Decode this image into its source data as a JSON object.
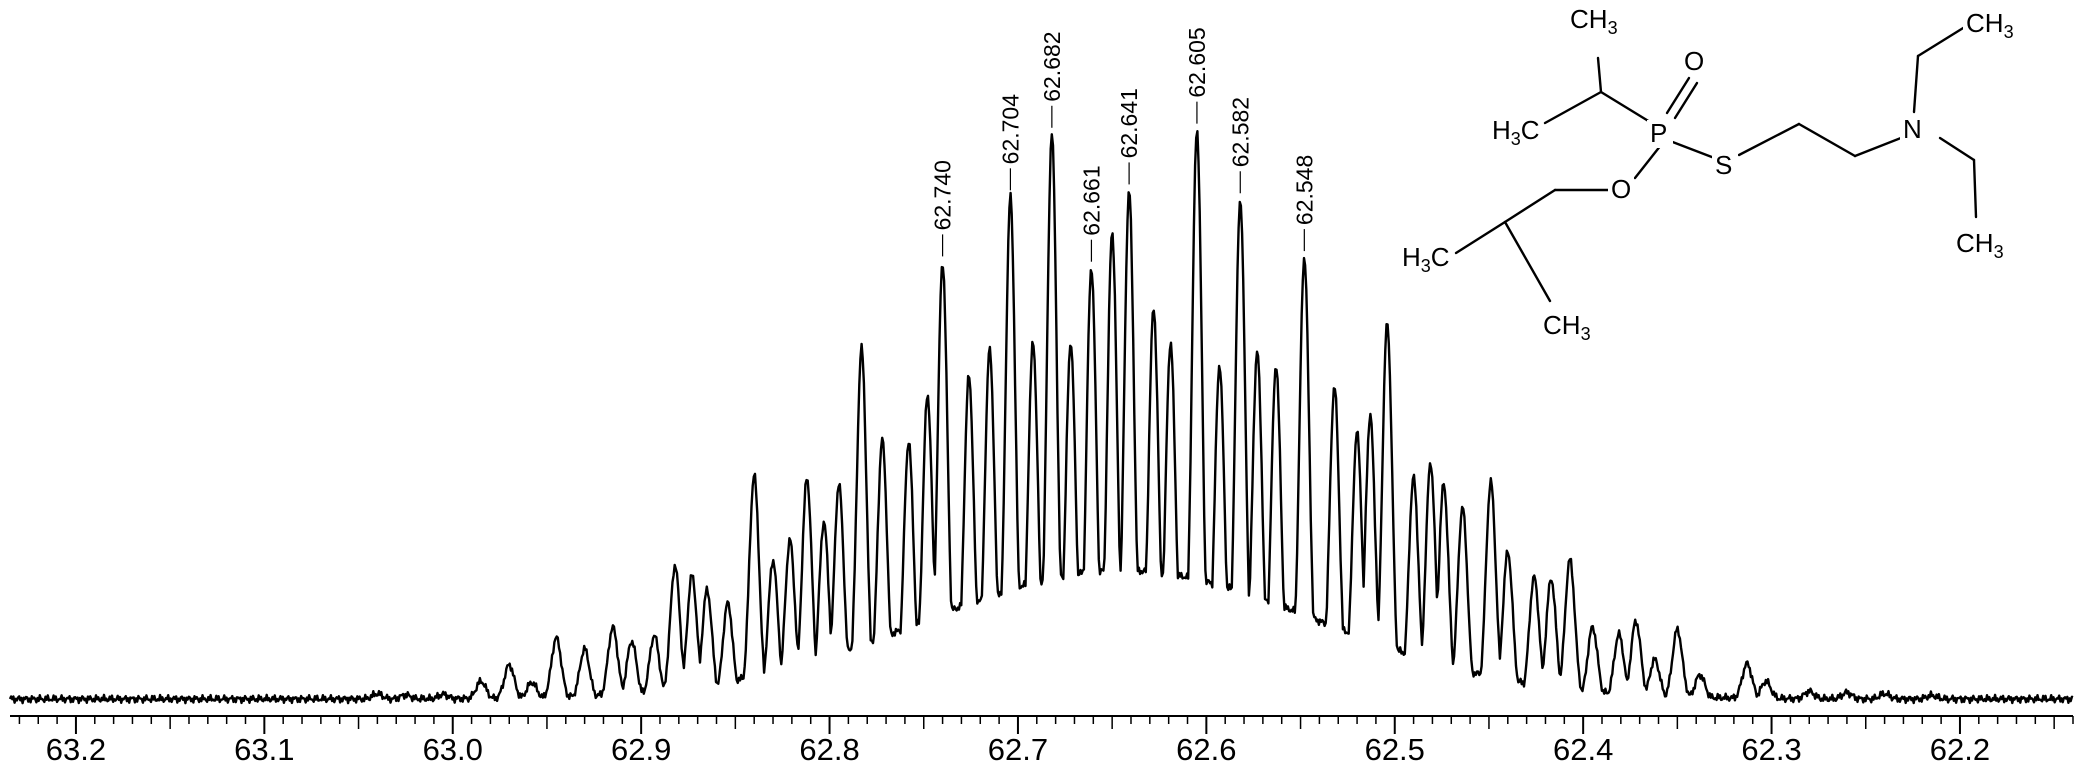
{
  "chart_data": {
    "type": "line",
    "title": "",
    "xlabel": "",
    "ylabel": "",
    "xlim": [
      63.235,
      62.14
    ],
    "x_reversed": true,
    "ylim": [
      0,
      1
    ],
    "grid": false,
    "x_ticks": [
      "63.2",
      "63.1",
      "63.0",
      "62.9",
      "62.8",
      "62.7",
      "62.6",
      "62.5",
      "62.4",
      "62.3",
      "62.2"
    ],
    "x_tick_values": [
      63.2,
      63.1,
      63.0,
      62.9,
      62.8,
      62.7,
      62.6,
      62.5,
      62.4,
      62.3,
      62.2
    ],
    "peaks": [
      {
        "x": 62.74,
        "y": 0.74,
        "label": "62.740"
      },
      {
        "x": 62.704,
        "y": 0.852,
        "label": "62.704"
      },
      {
        "x": 62.682,
        "y": 0.958,
        "label": "62.682"
      },
      {
        "x": 62.661,
        "y": 0.731,
        "label": "62.661"
      },
      {
        "x": 62.641,
        "y": 0.862,
        "label": "62.641"
      },
      {
        "x": 62.605,
        "y": 0.965,
        "label": "62.605"
      },
      {
        "x": 62.582,
        "y": 0.847,
        "label": "62.582"
      },
      {
        "x": 62.548,
        "y": 0.749,
        "label": "62.548"
      }
    ],
    "minor_peaks": [
      [
        63.04,
        0.009
      ],
      [
        63.025,
        0.007
      ],
      [
        63.005,
        0.008
      ],
      [
        62.985,
        0.03
      ],
      [
        62.97,
        0.058
      ],
      [
        62.958,
        0.028
      ],
      [
        62.945,
        0.104
      ],
      [
        62.93,
        0.085
      ],
      [
        62.915,
        0.122
      ],
      [
        62.905,
        0.098
      ],
      [
        62.893,
        0.108
      ],
      [
        62.882,
        0.226
      ],
      [
        62.873,
        0.21
      ],
      [
        62.865,
        0.185
      ],
      [
        62.854,
        0.163
      ],
      [
        62.84,
        0.38
      ],
      [
        62.83,
        0.235
      ],
      [
        62.821,
        0.27
      ],
      [
        62.812,
        0.375
      ],
      [
        62.803,
        0.3
      ],
      [
        62.795,
        0.364
      ],
      [
        62.783,
        0.595
      ],
      [
        62.772,
        0.44
      ],
      [
        62.758,
        0.437
      ],
      [
        62.748,
        0.515
      ],
      [
        62.726,
        0.548
      ],
      [
        62.715,
        0.593
      ],
      [
        62.692,
        0.605
      ],
      [
        62.672,
        0.605
      ],
      [
        62.65,
        0.792
      ],
      [
        62.628,
        0.662
      ],
      [
        62.619,
        0.604
      ],
      [
        62.593,
        0.566
      ],
      [
        62.573,
        0.589
      ],
      [
        62.563,
        0.566
      ],
      [
        62.532,
        0.53
      ],
      [
        62.52,
        0.452
      ],
      [
        62.513,
        0.48
      ],
      [
        62.504,
        0.638
      ],
      [
        62.49,
        0.376
      ],
      [
        62.481,
        0.4
      ],
      [
        62.474,
        0.365
      ],
      [
        62.464,
        0.325
      ],
      [
        62.449,
        0.369
      ],
      [
        62.44,
        0.25
      ],
      [
        62.426,
        0.207
      ],
      [
        62.417,
        0.204
      ],
      [
        62.407,
        0.237
      ],
      [
        62.395,
        0.122
      ],
      [
        62.381,
        0.11
      ],
      [
        62.372,
        0.132
      ],
      [
        62.362,
        0.067
      ],
      [
        62.35,
        0.118
      ],
      [
        62.338,
        0.041
      ],
      [
        62.313,
        0.06
      ],
      [
        62.303,
        0.03
      ],
      [
        62.28,
        0.013
      ],
      [
        62.26,
        0.011
      ],
      [
        62.24,
        0.009
      ],
      [
        62.215,
        0.006
      ]
    ],
    "envelope": {
      "center": 62.645,
      "sigma": 0.105,
      "height": 0.72
    },
    "molecule": {
      "atoms": [
        {
          "id": "ch3_top",
          "main": "CH",
          "sub": "3"
        },
        {
          "id": "h3c_left",
          "main": "H",
          "sub": "3",
          "tail": "C"
        },
        {
          "id": "p",
          "main": "P"
        },
        {
          "id": "o_double",
          "main": "O"
        },
        {
          "id": "s",
          "main": "S"
        },
        {
          "id": "o_ester",
          "main": "O"
        },
        {
          "id": "n",
          "main": "N"
        },
        {
          "id": "ch3_ne_top",
          "main": "CH",
          "sub": "3"
        },
        {
          "id": "ch3_ne_bottom",
          "main": "CH",
          "sub": "3"
        },
        {
          "id": "h3c_isobutyl",
          "main": "H",
          "sub": "3",
          "tail": "C"
        },
        {
          "id": "ch3_isobutyl",
          "main": "CH",
          "sub": "3"
        }
      ]
    }
  }
}
